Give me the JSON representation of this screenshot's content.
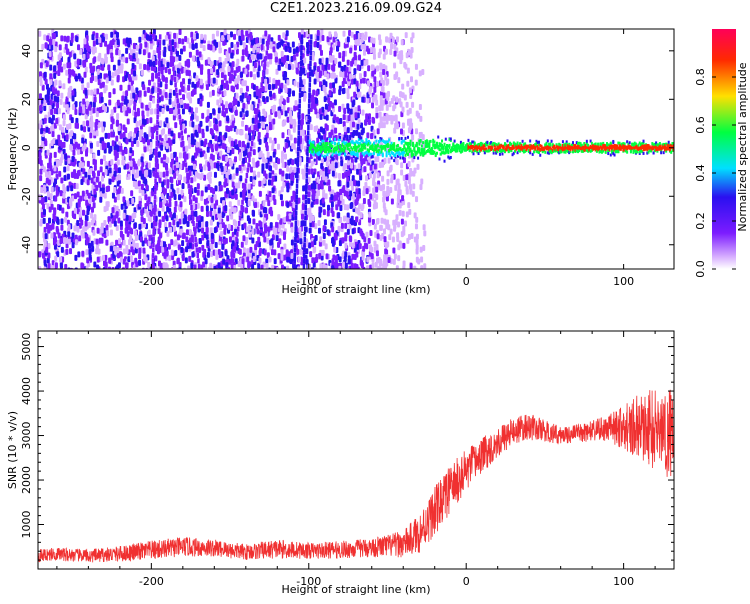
{
  "figure": {
    "title": "C2E1.2023.216.09.09.G24"
  },
  "chart_data": [
    {
      "type": "heatmap",
      "title": "C2E1.2023.216.09.09.G24",
      "xlabel": "Height of straight line (km)",
      "ylabel": "Frequency (Hz)",
      "xlim": [
        -272,
        132
      ],
      "ylim": [
        -50,
        49
      ],
      "x_ticks": [
        -200,
        -100,
        0,
        100
      ],
      "y_ticks": [
        -40,
        -20,
        0,
        20,
        40
      ],
      "colorbar": {
        "label": "Normalized spectral amplitude",
        "range": [
          0.0,
          1.0
        ],
        "ticks": [
          0.0,
          0.2,
          0.4,
          0.6,
          0.8
        ],
        "colors": [
          "#ffffff",
          "#d8b0ff",
          "#7c1cff",
          "#2a10f0",
          "#00e0ff",
          "#00ff40",
          "#ffe000",
          "#ff2a00",
          "#ff0058"
        ]
      },
      "features": {
        "diffuse_band_x": [
          -272,
          -35
        ],
        "signal_line_frequency": 0,
        "signal_start_x": -100,
        "vertical_streaks_x": [
          -104,
          -110,
          -150,
          -170,
          -200
        ]
      },
      "grid": false
    },
    {
      "type": "line",
      "xlabel": "Height of straight line (km)",
      "ylabel": "SNR (10 * v/v)",
      "xlim": [
        -272,
        132
      ],
      "ylim": [
        0,
        5350
      ],
      "x_ticks": [
        -200,
        -100,
        0,
        100
      ],
      "y_ticks": [
        1000,
        2000,
        3000,
        4000,
        5000
      ],
      "color": "#f03030",
      "trend": {
        "x": [
          -272,
          -260,
          -240,
          -220,
          -200,
          -180,
          -160,
          -140,
          -120,
          -100,
          -80,
          -60,
          -40,
          -30,
          -20,
          -10,
          0,
          10,
          20,
          30,
          40,
          50,
          60,
          70,
          80,
          90,
          100,
          110,
          120,
          132
        ],
        "y": [
          300,
          340,
          290,
          340,
          420,
          500,
          470,
          380,
          450,
          410,
          430,
          480,
          560,
          800,
          1300,
          1800,
          2200,
          2550,
          2850,
          3100,
          3200,
          3100,
          3000,
          3050,
          3100,
          3150,
          3200,
          3200,
          3150,
          3050
        ],
        "noise": [
          150,
          150,
          150,
          180,
          220,
          220,
          200,
          180,
          220,
          180,
          200,
          220,
          300,
          450,
          550,
          550,
          500,
          400,
          350,
          300,
          300,
          250,
          200,
          200,
          250,
          300,
          500,
          750,
          950,
          1100
        ]
      },
      "grid": false
    }
  ]
}
